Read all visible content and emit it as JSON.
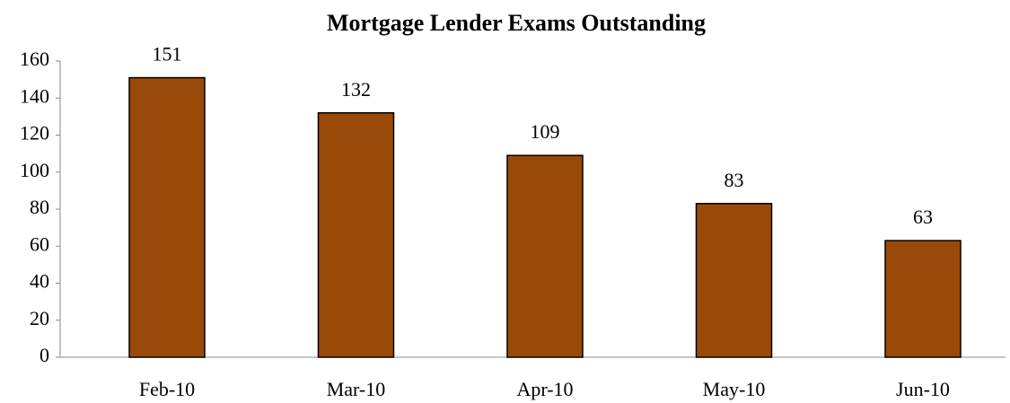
{
  "chart_data": {
    "type": "bar",
    "title": "Mortgage Lender Exams Outstanding",
    "categories": [
      "Feb-10",
      "Mar-10",
      "Apr-10",
      "May-10",
      "Jun-10"
    ],
    "values": [
      151,
      132,
      109,
      83,
      63
    ],
    "color": "#9a4a08",
    "ylim": [
      0,
      160
    ],
    "yticks": [
      0,
      20,
      40,
      60,
      80,
      100,
      120,
      140,
      160
    ],
    "grid": false
  }
}
